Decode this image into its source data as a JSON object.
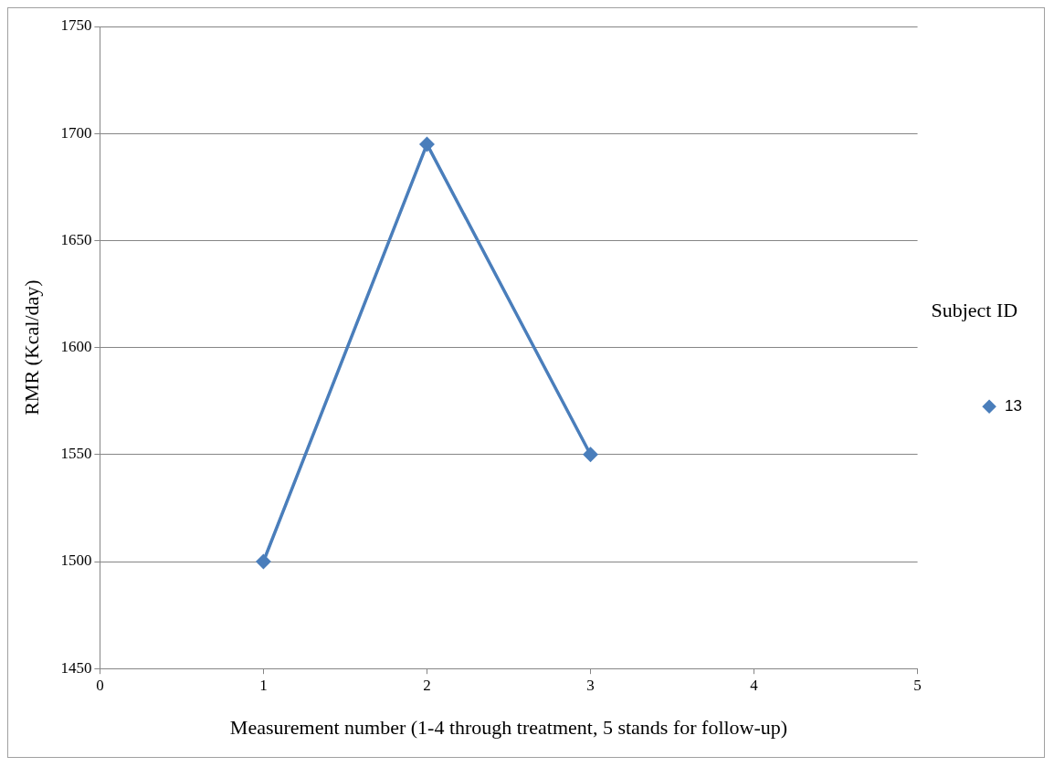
{
  "chart_data": {
    "type": "line",
    "xlabel": "Measurement number (1-4 through treatment, 5 stands for follow-up)",
    "ylabel": "RMR (Kcal/day)",
    "legend_title": "Subject ID",
    "x": [
      1,
      2,
      3
    ],
    "series": [
      {
        "name": "13",
        "color": "#4a7ebb",
        "values": [
          1500,
          1695,
          1550
        ]
      }
    ],
    "xlim": [
      0,
      5
    ],
    "xticks": [
      0,
      1,
      2,
      3,
      4,
      5
    ],
    "ylim": [
      1450,
      1750
    ],
    "yticks": [
      1450,
      1500,
      1550,
      1600,
      1650,
      1700,
      1750
    ],
    "grid": "y",
    "legend": "right",
    "marker": "diamond",
    "line_style": "solid"
  }
}
